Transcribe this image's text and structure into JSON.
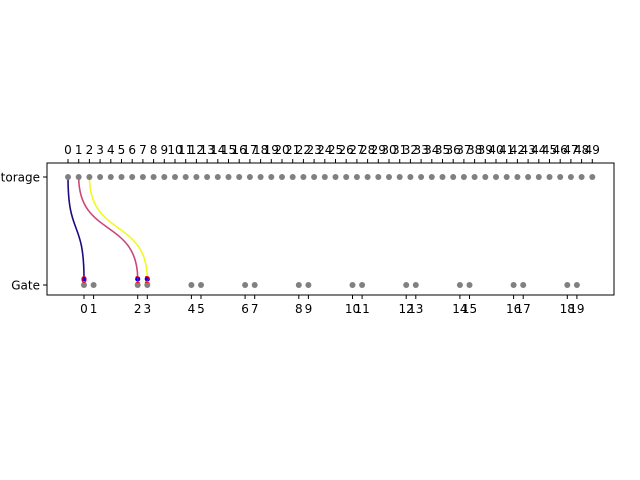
{
  "chart_data": {
    "type": "diagram",
    "rows": [
      {
        "name": "Storage",
        "label": "Storage"
      },
      {
        "name": "Gate",
        "label": "Gate"
      }
    ],
    "storage_slots": [
      "0",
      "1",
      "2",
      "3",
      "4",
      "5",
      "6",
      "7",
      "8",
      "9",
      "10",
      "11",
      "12",
      "13",
      "14",
      "15",
      "16",
      "17",
      "18",
      "19",
      "20",
      "21",
      "22",
      "23",
      "24",
      "25",
      "26",
      "27",
      "28",
      "29",
      "30",
      "31",
      "32",
      "33",
      "34",
      "35",
      "36",
      "37",
      "38",
      "39",
      "40",
      "41",
      "42",
      "43",
      "44",
      "45",
      "46",
      "47",
      "48",
      "49"
    ],
    "gate_slots": [
      "0",
      "1",
      "2",
      "3",
      "4",
      "5",
      "6",
      "7",
      "8",
      "9",
      "10",
      "11",
      "12",
      "13",
      "14",
      "15",
      "16",
      "17",
      "18",
      "19"
    ],
    "transfers": [
      {
        "from_storage": 0,
        "to_gate": 0,
        "color": "#1b0c80",
        "marker_label": "0"
      },
      {
        "from_storage": 1,
        "to_gate": 2,
        "color": "#cc4778",
        "marker_label": "1"
      },
      {
        "from_storage": 2,
        "to_gate": 3,
        "color": "#f0f921",
        "marker_label": "2"
      }
    ],
    "colors": {
      "slot_dot": "#808080",
      "marker_fill": "#0000ff",
      "marker_ring": "#ff0000"
    }
  }
}
